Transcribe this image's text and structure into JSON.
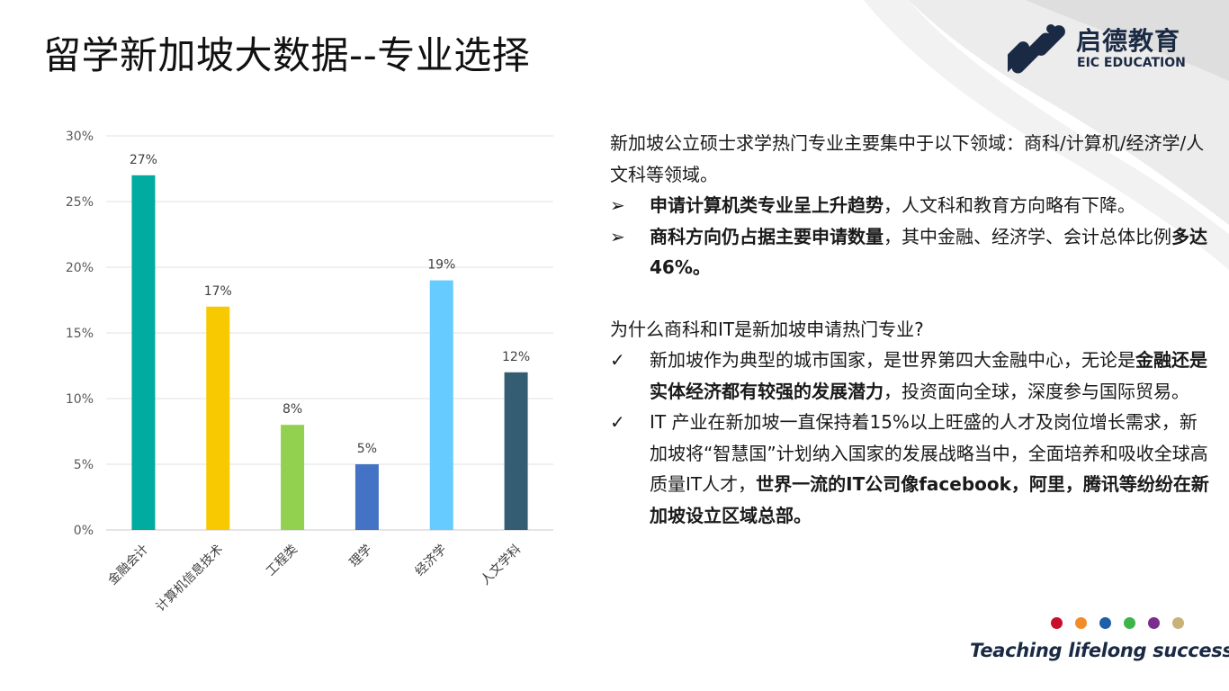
{
  "title": "留学新加坡大数据--专业选择",
  "logo": {
    "cn": "启德教育",
    "en": "EIC EDUCATION"
  },
  "chart_data": {
    "type": "bar",
    "categories": [
      "金融会计",
      "计算机信息技术",
      "工程类",
      "理学",
      "经济学",
      "人文学科"
    ],
    "values": [
      27,
      17,
      8,
      5,
      19,
      12
    ],
    "value_labels": [
      "27%",
      "17%",
      "8%",
      "5%",
      "19%",
      "12%"
    ],
    "colors": [
      "#00ABA0",
      "#F8C800",
      "#92D050",
      "#4472C4",
      "#66CCFF",
      "#345C72"
    ],
    "yticks": [
      "0%",
      "5%",
      "10%",
      "15%",
      "20%",
      "25%",
      "30%"
    ],
    "ylim": [
      0,
      30
    ],
    "grid": true
  },
  "text": {
    "intro": "新加坡公立硕士求学热门专业主要集中于以下领域：商科/计算机/经济学/人文科等领域。",
    "b1_mark": "➢",
    "b1_bold": "申请计算机类专业呈上升趋势",
    "b1_rest": "，人文科和教育方向略有下降。",
    "b2_mark": "➢",
    "b2_bold": "商科方向仍占据主要申请数量",
    "b2_rest": "，其中金融、经济学、会计总体比例",
    "b2_bold2": "多达46%。",
    "question": "为什么商科和IT是新加坡申请热门专业?",
    "c1_mark": "✓",
    "c1_pre": "新加坡作为典型的城市国家，是世界第四大金融中心，无论是",
    "c1_bold": "金融还是实体经济都有较强的发展潜力",
    "c1_rest": "，投资面向全球，深度参与国际贸易。",
    "c2_mark": "✓",
    "c2_pre": "IT 产业在新加坡一直保持着15%以上旺盛的人才及岗位增长需求，新加坡将“智慧国”计划纳入国家的发展战略当中，全面培养和吸收全球高质量IT人才，",
    "c2_bold": "世界一流的IT公司像facebook，阿里，腾讯等纷纷在新加坡设立区域总部。"
  },
  "dot_colors": [
    "#C8102E",
    "#F28C28",
    "#1F5FA8",
    "#3DB54A",
    "#7B2D8E",
    "#C8B27A"
  ],
  "slogan": "Teaching lifelong success"
}
